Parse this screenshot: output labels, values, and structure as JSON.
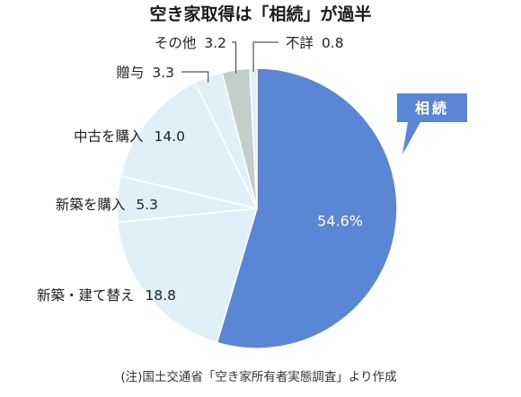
{
  "chart_data": {
    "type": "pie",
    "title": "空き家取得は「相続」が過半",
    "slices": [
      {
        "label": "相続",
        "value": 54.6,
        "value_text": "54.6%",
        "color": "#5b86d6",
        "callout": "badge"
      },
      {
        "label": "新築・建て替え",
        "value": 18.8,
        "value_text": "18.8",
        "color": "#dff0f9",
        "callout": "left"
      },
      {
        "label": "新築を購入",
        "value": 5.3,
        "value_text": "5.3",
        "color": "#dff0f9",
        "callout": "left"
      },
      {
        "label": "中古を購入",
        "value": 14.0,
        "value_text": "14.0",
        "color": "#dff0f9",
        "callout": "left"
      },
      {
        "label": "贈与",
        "value": 3.3,
        "value_text": "3.3",
        "color": "#dff0f9",
        "callout": "leader"
      },
      {
        "label": "その他",
        "value": 3.2,
        "value_text": "3.2",
        "color": "#c4cfcc",
        "callout": "leader"
      },
      {
        "label": "不詳",
        "value": 0.8,
        "value_text": "0.8",
        "color": "#dff0f9",
        "callout": "leader"
      }
    ],
    "start_direction": "top",
    "order": "clockwise",
    "note": "(注)国土交通省「空き家所有者実態調査」より作成"
  }
}
